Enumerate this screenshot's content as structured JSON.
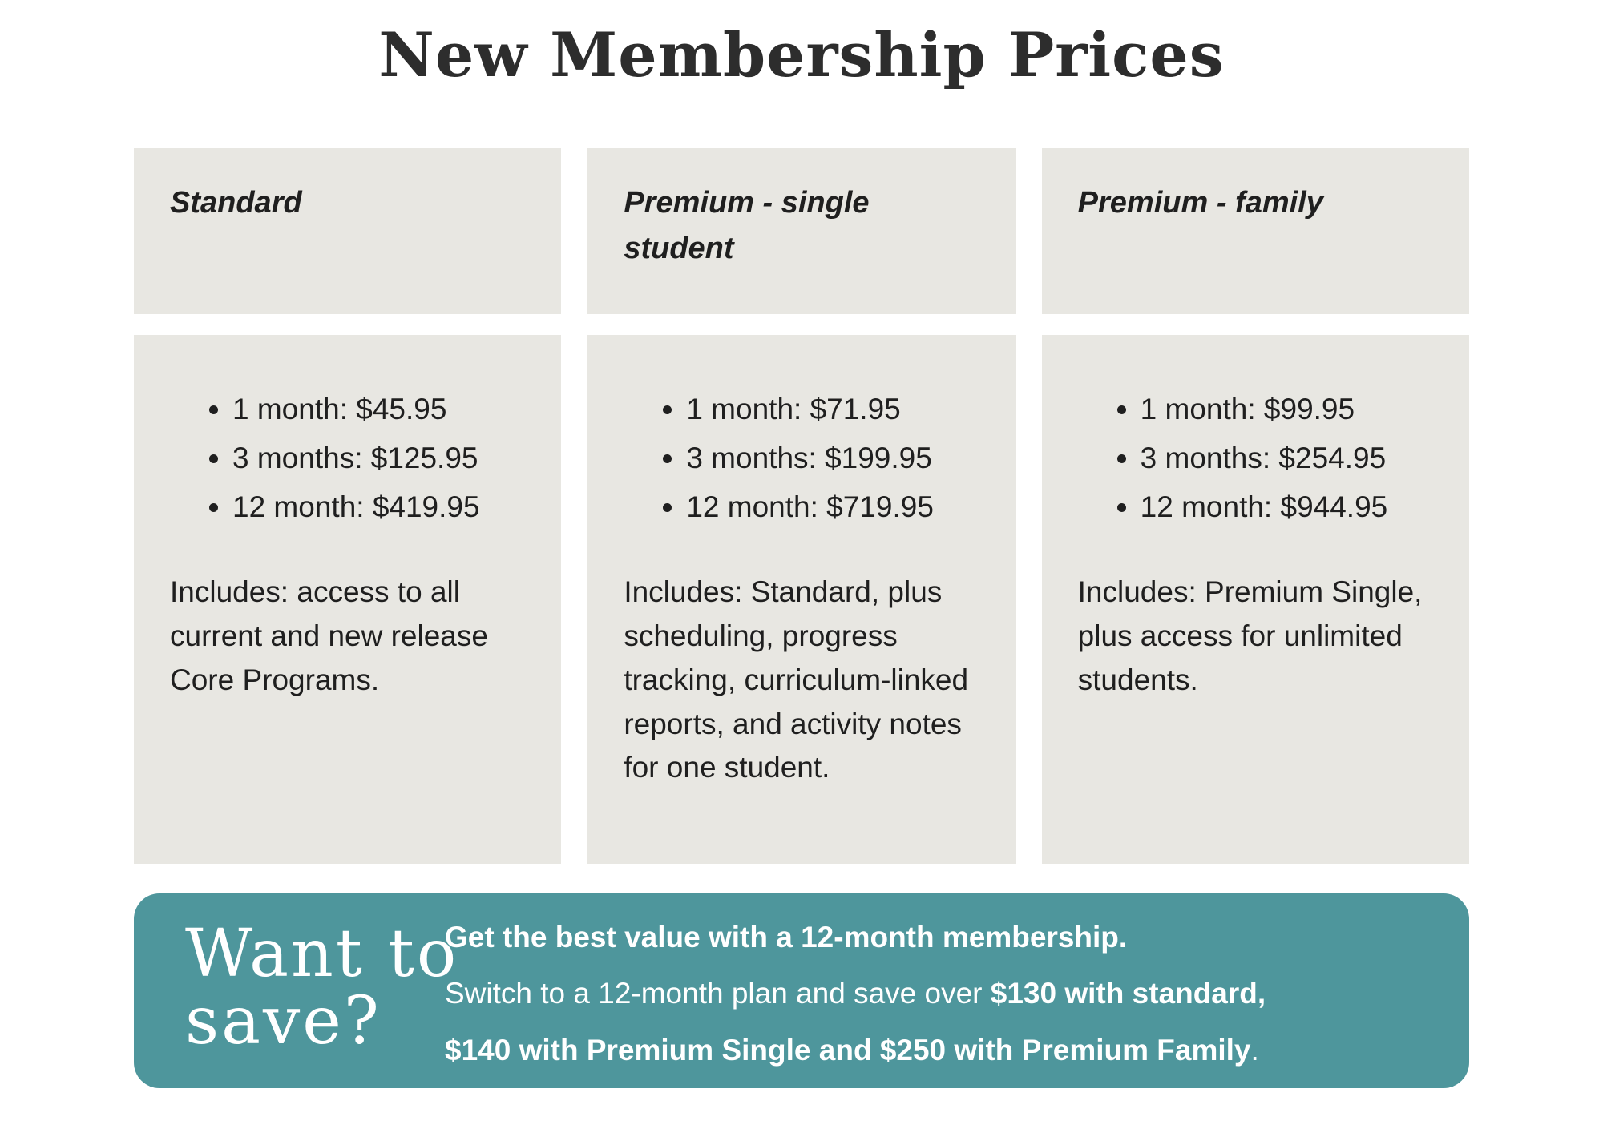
{
  "title": "New Membership Prices",
  "plans": [
    {
      "name": "Standard",
      "prices": [
        "1 month: $45.95",
        "3 months: $125.95",
        "12 month: $419.95"
      ],
      "includes": "Includes: access to all current and new release Core Programs."
    },
    {
      "name": "Premium - single student",
      "prices": [
        "1 month: $71.95",
        "3 months: $199.95",
        "12 month: $719.95"
      ],
      "includes": "Includes: Standard, plus scheduling, progress tracking, curriculum-linked reports, and activity notes for one student."
    },
    {
      "name": "Premium - family",
      "prices": [
        "1 month: $99.95",
        "3 months: $254.95",
        "12 month: $944.95"
      ],
      "includes": "Includes: Premium Single, plus access for unlimited students."
    }
  ],
  "banner": {
    "heading_line1": "Want to",
    "heading_line2": "save?",
    "line1_bold": "Get the best value with a 12-month membership.",
    "line2_regular": "Switch to a 12-month plan and save over ",
    "line2_bold": "$130 with standard,",
    "line3_bold": "$140 with Premium Single and $250 with Premium Family",
    "line3_regular": "."
  },
  "colors": {
    "card_bg": "#e8e7e2",
    "banner_bg": "#4e969c",
    "title_text": "#2d2d2d",
    "body_text": "#1f1f1f",
    "banner_text": "#ffffff"
  }
}
